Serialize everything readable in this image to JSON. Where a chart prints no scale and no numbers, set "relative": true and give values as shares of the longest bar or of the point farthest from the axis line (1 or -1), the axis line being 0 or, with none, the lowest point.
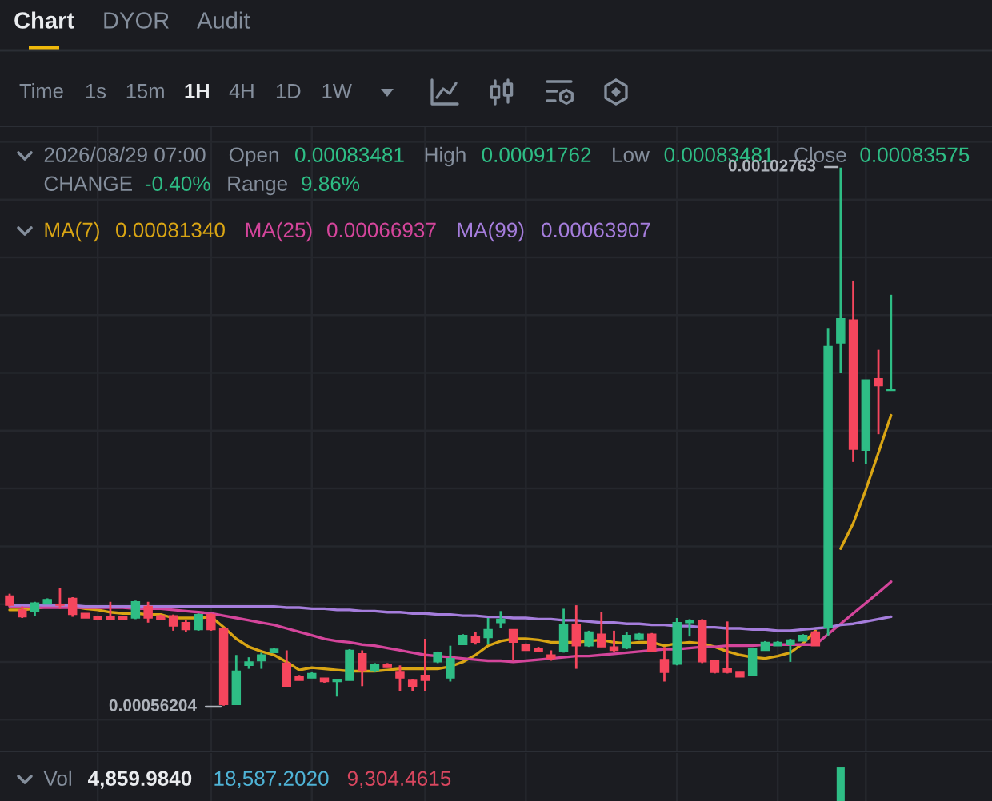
{
  "chart_data": [
    {
      "type": "candlestick",
      "categories": [
        null,
        null,
        null,
        null,
        null,
        null,
        null,
        null,
        null,
        null,
        null,
        null,
        null,
        null,
        null,
        null,
        null,
        null,
        null,
        null,
        null,
        null,
        null,
        null,
        null,
        null,
        null,
        null,
        null,
        null,
        null,
        null,
        null,
        null,
        null,
        null,
        null,
        null,
        null,
        null,
        null,
        null,
        null,
        null,
        null,
        null,
        null,
        null,
        null,
        null,
        null,
        null,
        null,
        null,
        null,
        null,
        null,
        null,
        null,
        null,
        null,
        null,
        null,
        null,
        null,
        null,
        null,
        null,
        null,
        null,
        null
      ],
      "ohlc": [
        [
          0.000657,
          0.000659,
          0.000648,
          0.000649
        ],
        [
          0.000645,
          0.000648,
          0.000638,
          0.000639
        ],
        [
          0.000644,
          0.000652,
          0.00064,
          0.000651
        ],
        [
          0.00065,
          0.000655,
          0.00065,
          0.000654
        ],
        [
          0.00065,
          0.000664,
          0.000646,
          0.000649
        ],
        [
          0.000655,
          0.000656,
          0.000639,
          0.000641
        ],
        [
          0.000642,
          0.000642,
          0.000638,
          0.000638
        ],
        [
          0.000639,
          0.00064,
          0.000636,
          0.000637
        ],
        [
          0.000639,
          0.000652,
          0.000636,
          0.000637
        ],
        [
          0.000639,
          0.00064,
          0.000636,
          0.000637
        ],
        [
          0.000638,
          0.000653,
          0.000637,
          0.000652
        ],
        [
          0.000648,
          0.000652,
          0.000634,
          0.000638
        ],
        [
          0.00064,
          0.000641,
          0.000637,
          0.000637
        ],
        [
          0.00064,
          0.000641,
          0.000627,
          0.000631
        ],
        [
          0.000634,
          0.000636,
          0.000626,
          0.000628
        ],
        [
          0.000628,
          0.000642,
          0.000627,
          0.000641
        ],
        [
          0.000641,
          0.000642,
          0.000627,
          0.000628
        ],
        [
          0.000629,
          0.00063,
          0.00056204,
          0.000563
        ],
        [
          0.000563,
          0.000606,
          0.000563,
          0.000592
        ],
        [
          0.000597,
          0.000604,
          0.000594,
          0.0006
        ],
        [
          0.000601,
          0.000608,
          0.000594,
          0.000606
        ],
        [
          0.000608,
          0.000612,
          0.000608,
          0.000611
        ],
        [
          0.000599,
          0.00061,
          0.000578,
          0.000579
        ],
        [
          0.000587,
          0.000588,
          0.000584,
          0.000584
        ],
        [
          0.000586,
          0.000591,
          0.000586,
          0.00059
        ],
        [
          0.000586,
          0.000586,
          0.000582,
          0.000583
        ],
        [
          0.000583,
          0.000585,
          0.00057,
          0.000585
        ],
        [
          0.000584,
          0.000611,
          0.000584,
          0.00061
        ],
        [
          0.000607,
          0.00061,
          0.000579,
          0.000592
        ],
        [
          0.000592,
          0.000599,
          0.000591,
          0.000598
        ],
        [
          0.000598,
          0.000599,
          0.000595,
          0.000595
        ],
        [
          0.000591,
          0.000597,
          0.000575,
          0.000586
        ],
        [
          0.000584,
          0.000585,
          0.000575,
          0.000579
        ],
        [
          0.000588,
          0.00062,
          0.000575,
          0.000584
        ],
        [
          0.0006,
          0.000609,
          0.000599,
          0.000608
        ],
        [
          0.000586,
          0.000614,
          0.000583,
          0.000603
        ],
        [
          0.000615,
          0.000624,
          0.000615,
          0.000623
        ],
        [
          0.000622,
          0.000626,
          0.000615,
          0.000617
        ],
        [
          0.000621,
          0.000638,
          0.000615,
          0.000628
        ],
        [
          0.000634,
          0.000644,
          0.000629,
          0.000637
        ],
        [
          0.000628,
          0.000628,
          0.000601,
          0.000617
        ],
        [
          0.000615,
          0.000616,
          0.00061,
          0.00061
        ],
        [
          0.000612,
          0.000613,
          0.000609,
          0.000609
        ],
        [
          0.000606,
          0.00061,
          0.000601,
          0.000603
        ],
        [
          0.000609,
          0.000646,
          0.000608,
          0.000632
        ],
        [
          0.000632,
          0.000649,
          0.000594,
          0.000614
        ],
        [
          0.000614,
          0.000627,
          0.000613,
          0.000626
        ],
        [
          0.000624,
          0.000643,
          0.000613,
          0.000613
        ],
        [
          0.000613,
          0.000627,
          0.000609,
          0.00061
        ],
        [
          0.000612,
          0.000626,
          0.000611,
          0.000623
        ],
        [
          0.00062,
          0.000625,
          0.000619,
          0.000624
        ],
        [
          0.000624,
          0.000625,
          0.000609,
          0.000609
        ],
        [
          0.000602,
          0.000613,
          0.000583,
          0.000591
        ],
        [
          0.000598,
          0.000638,
          0.000597,
          0.000634
        ],
        [
          0.000634,
          0.000637,
          0.000622,
          0.000636
        ],
        [
          0.000636,
          0.000637,
          0.000599,
          0.0006
        ],
        [
          0.000601,
          0.000602,
          0.00059,
          0.000591
        ],
        [
          0.000594,
          0.000635,
          0.00059,
          0.000591
        ],
        [
          0.000591,
          0.000591,
          0.000587,
          0.000587
        ],
        [
          0.000588,
          0.000612,
          0.000588,
          0.000612
        ],
        [
          0.00061,
          0.000618,
          0.00061,
          0.000617
        ],
        [
          0.000614,
          0.000618,
          0.000614,
          0.000617
        ],
        [
          0.000615,
          0.00062,
          0.0006,
          0.000619
        ],
        [
          0.000618,
          0.000624,
          0.000618,
          0.000623
        ],
        [
          0.000626,
          0.000627,
          0.000614,
          0.000614
        ],
        [
          0.00063,
          0.000889,
          0.000623,
          0.000873
        ],
        [
          0.000876,
          0.00102763,
          0.00085,
          0.000897
        ],
        [
          0.000896,
          0.00093,
          0.000773,
          0.000784
        ],
        [
          0.000783,
          0.000844,
          0.000771,
          0.000844
        ],
        [
          0.000845,
          0.00087,
          0.000797,
          0.000839
        ],
        [
          0.00083481,
          0.00091762,
          0.00083481,
          0.00083575
        ]
      ],
      "colors": [
        "#f6465d",
        "#f6465d",
        "#2ebd85",
        "#2ebd85",
        "#f6465d",
        "#f6465d",
        "#f6465d",
        "#f6465d",
        "#f6465d",
        "#f6465d",
        "#2ebd85",
        "#f6465d",
        "#f6465d",
        "#f6465d",
        "#f6465d",
        "#2ebd85",
        "#f6465d",
        "#f6465d",
        "#2ebd85",
        "#2ebd85",
        "#2ebd85",
        "#2ebd85",
        "#f6465d",
        "#f6465d",
        "#2ebd85",
        "#f6465d",
        "#2ebd85",
        "#2ebd85",
        "#f6465d",
        "#2ebd85",
        "#f6465d",
        "#f6465d",
        "#f6465d",
        "#f6465d",
        "#2ebd85",
        "#2ebd85",
        "#2ebd85",
        "#f6465d",
        "#2ebd85",
        "#2ebd85",
        "#f6465d",
        "#f6465d",
        "#f6465d",
        "#f6465d",
        "#2ebd85",
        "#f6465d",
        "#2ebd85",
        "#f6465d",
        "#f6465d",
        "#2ebd85",
        "#2ebd85",
        "#f6465d",
        "#f6465d",
        "#2ebd85",
        "#2ebd85",
        "#f6465d",
        "#f6465d",
        "#f6465d",
        "#f6465d",
        "#2ebd85",
        "#2ebd85",
        "#2ebd85",
        "#2ebd85",
        "#2ebd85",
        "#f6465d",
        "#2ebd85",
        "#2ebd85",
        "#f6465d",
        "#2ebd85",
        "#f6465d",
        "#2ebd85"
      ],
      "series": [
        {
          "type": "line",
          "name": "MA(7)",
          "color": "#d9a514",
          "values": [
            0.000645,
            0.000645,
            0.000646,
            0.000648,
            0.000649,
            0.000648,
            0.000646,
            0.000645,
            0.000643,
            0.000642,
            0.000642,
            0.000641,
            0.000641,
            0.000638,
            0.000638,
            0.000638,
            0.000639,
            0.00063,
            0.00062,
            0.000613,
            0.000609,
            0.000606,
            0.0006,
            0.000593,
            0.000595,
            0.000594,
            0.000593,
            0.000592,
            0.000592,
            0.000592,
            0.000593,
            0.000594,
            0.000594,
            0.000594,
            0.000594,
            0.000596,
            0.0006,
            0.000606,
            0.000614,
            0.000618,
            0.00062,
            0.00062,
            0.000619,
            0.000617,
            0.000617,
            0.000617,
            0.000618,
            0.000619,
            0.000617,
            0.000616,
            0.000617,
            0.000617,
            0.000614,
            0.000616,
            0.000617,
            0.000616,
            0.000613,
            0.000609,
            0.000606,
            0.000604,
            0.000603,
            0.000605,
            0.000608,
            0.000616,
            0.000627,
            null,
            0.000698,
            0.00072,
            0.000749,
            0.000781,
            0.0008134
          ]
        },
        {
          "type": "line",
          "name": "MA(25)",
          "color": "#d4459b",
          "values": [
            0.000648,
            0.000648,
            0.000647,
            0.000647,
            0.000647,
            0.000647,
            0.000647,
            0.000647,
            0.000647,
            0.000647,
            0.000646,
            0.000646,
            0.000646,
            0.000645,
            0.000644,
            0.000643,
            0.000642,
            0.00064,
            0.000638,
            0.000636,
            0.000634,
            0.000632,
            0.000629,
            0.000626,
            0.000623,
            0.00062,
            0.000618,
            0.000617,
            0.000615,
            0.000614,
            0.000612,
            0.00061,
            0.000608,
            0.000606,
            0.000605,
            0.000604,
            0.000603,
            0.000602,
            0.000601,
            0.000601,
            0.0006,
            0.000601,
            0.000602,
            0.000603,
            0.000604,
            0.000605,
            0.000605,
            0.000606,
            0.000607,
            0.000608,
            0.000609,
            0.00061,
            0.000611,
            0.000611,
            0.000612,
            0.000613,
            0.000613,
            0.000614,
            0.000614,
            0.000614,
            0.000615,
            0.000615,
            0.000615,
            0.000615,
            0.000615,
            0.000624,
            0.000633,
            0.000642,
            0.000651,
            0.00066,
            0.00066937
          ]
        },
        {
          "type": "line",
          "name": "MA(99)",
          "color": "#a57ddc",
          "values": [
            0.000649,
            0.000649,
            0.000649,
            0.000649,
            0.000649,
            0.000649,
            0.000648,
            0.000648,
            0.000648,
            0.000648,
            0.000648,
            0.000648,
            0.000648,
            0.000648,
            0.000648,
            0.000648,
            0.000648,
            0.000648,
            0.000648,
            0.000648,
            0.000648,
            0.000648,
            0.000647,
            0.000647,
            0.000646,
            0.000646,
            0.000645,
            0.000645,
            0.000644,
            0.000644,
            0.000643,
            0.000643,
            0.000642,
            0.000642,
            0.000641,
            0.000641,
            0.00064,
            0.00064,
            0.000639,
            0.000639,
            0.000638,
            0.000638,
            0.000637,
            0.000637,
            0.000636,
            0.000636,
            0.000635,
            0.000634,
            0.000634,
            0.000633,
            0.000633,
            0.000632,
            0.000632,
            0.000631,
            0.000631,
            0.00063,
            0.00063,
            0.000629,
            0.000629,
            0.000628,
            0.000628,
            0.000627,
            0.000627,
            0.000628,
            0.000629,
            0.00063,
            0.000632,
            0.000633,
            0.000635,
            0.000637,
            0.00063907
          ]
        }
      ],
      "annotations": [
        "Chart",
        "DYOR",
        "Audit",
        "Time",
        "1s",
        "15m",
        "1H",
        "4H",
        "1D",
        "1W",
        "2026/08/29 07:00",
        "Open",
        "0.00083481",
        "High",
        "0.00091762",
        "Low",
        "0.00083481",
        "Close",
        "0.00083575",
        "CHANGE",
        "-0.40%",
        "Range",
        "9.86%",
        "0.00081340",
        "0.00066937",
        "0.00063907",
        "0.00102763",
        "0.00056204"
      ],
      "grid": true,
      "legend": "top left",
      "tick_labels": false
    },
    {
      "type": "bar",
      "relative": true,
      "color": "#2ebd85",
      "categories": [
        null,
        null,
        null,
        null,
        null,
        null,
        null,
        null,
        null,
        null,
        null,
        null,
        null,
        null,
        null,
        null,
        null,
        null,
        null,
        null,
        null,
        null,
        null,
        null,
        null,
        null,
        null,
        null,
        null,
        null,
        null,
        null,
        null,
        null,
        null,
        null,
        null,
        null,
        null,
        null,
        null,
        null,
        null,
        null,
        null,
        null,
        null,
        null,
        null,
        null,
        null,
        null,
        null,
        null,
        null,
        null,
        null,
        null,
        null,
        null,
        null,
        null,
        null,
        null,
        null,
        null,
        null,
        null,
        null,
        null,
        null
      ],
      "values": [
        null,
        null,
        null,
        null,
        null,
        null,
        null,
        null,
        null,
        null,
        null,
        null,
        null,
        null,
        null,
        null,
        null,
        null,
        null,
        null,
        null,
        null,
        null,
        null,
        null,
        null,
        null,
        null,
        null,
        null,
        null,
        null,
        null,
        null,
        null,
        null,
        null,
        null,
        null,
        null,
        null,
        null,
        null,
        null,
        null,
        null,
        null,
        null,
        null,
        null,
        null,
        null,
        null,
        null,
        null,
        null,
        null,
        null,
        null,
        null,
        null,
        null,
        null,
        null,
        null,
        null,
        1,
        null,
        null,
        null,
        null
      ],
      "annotations": [
        "Vol",
        "4,859.9840",
        "18,587.2020",
        "9,304.4615"
      ],
      "grid": "x"
    }
  ]
}
